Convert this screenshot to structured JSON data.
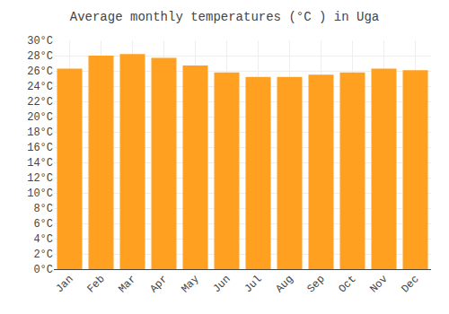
{
  "chart_data": {
    "type": "bar",
    "title": "Average monthly temperatures (°C ) in Uga",
    "categories": [
      "Jan",
      "Feb",
      "Mar",
      "Apr",
      "May",
      "Jun",
      "Jul",
      "Aug",
      "Sep",
      "Oct",
      "Nov",
      "Dec"
    ],
    "values": [
      26.3,
      28.0,
      28.2,
      27.7,
      26.7,
      25.8,
      25.2,
      25.2,
      25.5,
      25.8,
      26.3,
      26.1
    ],
    "color": "#FFA020",
    "ylim": [
      0,
      30
    ],
    "yticks": [
      {
        "value": 0,
        "label": "0°C"
      },
      {
        "value": 2,
        "label": "2°C"
      },
      {
        "value": 4,
        "label": "4°C"
      },
      {
        "value": 6,
        "label": "6°C"
      },
      {
        "value": 8,
        "label": "8°C"
      },
      {
        "value": 10,
        "label": "10°C"
      },
      {
        "value": 12,
        "label": "12°C"
      },
      {
        "value": 14,
        "label": "14°C"
      },
      {
        "value": 16,
        "label": "16°C"
      },
      {
        "value": 18,
        "label": "18°C"
      },
      {
        "value": 20,
        "label": "20°C"
      },
      {
        "value": 22,
        "label": "22°C"
      },
      {
        "value": 24,
        "label": "24°C"
      },
      {
        "value": 26,
        "label": "26°C"
      },
      {
        "value": 28,
        "label": "28°C"
      },
      {
        "value": 30,
        "label": "30°C"
      }
    ],
    "grid": true
  }
}
